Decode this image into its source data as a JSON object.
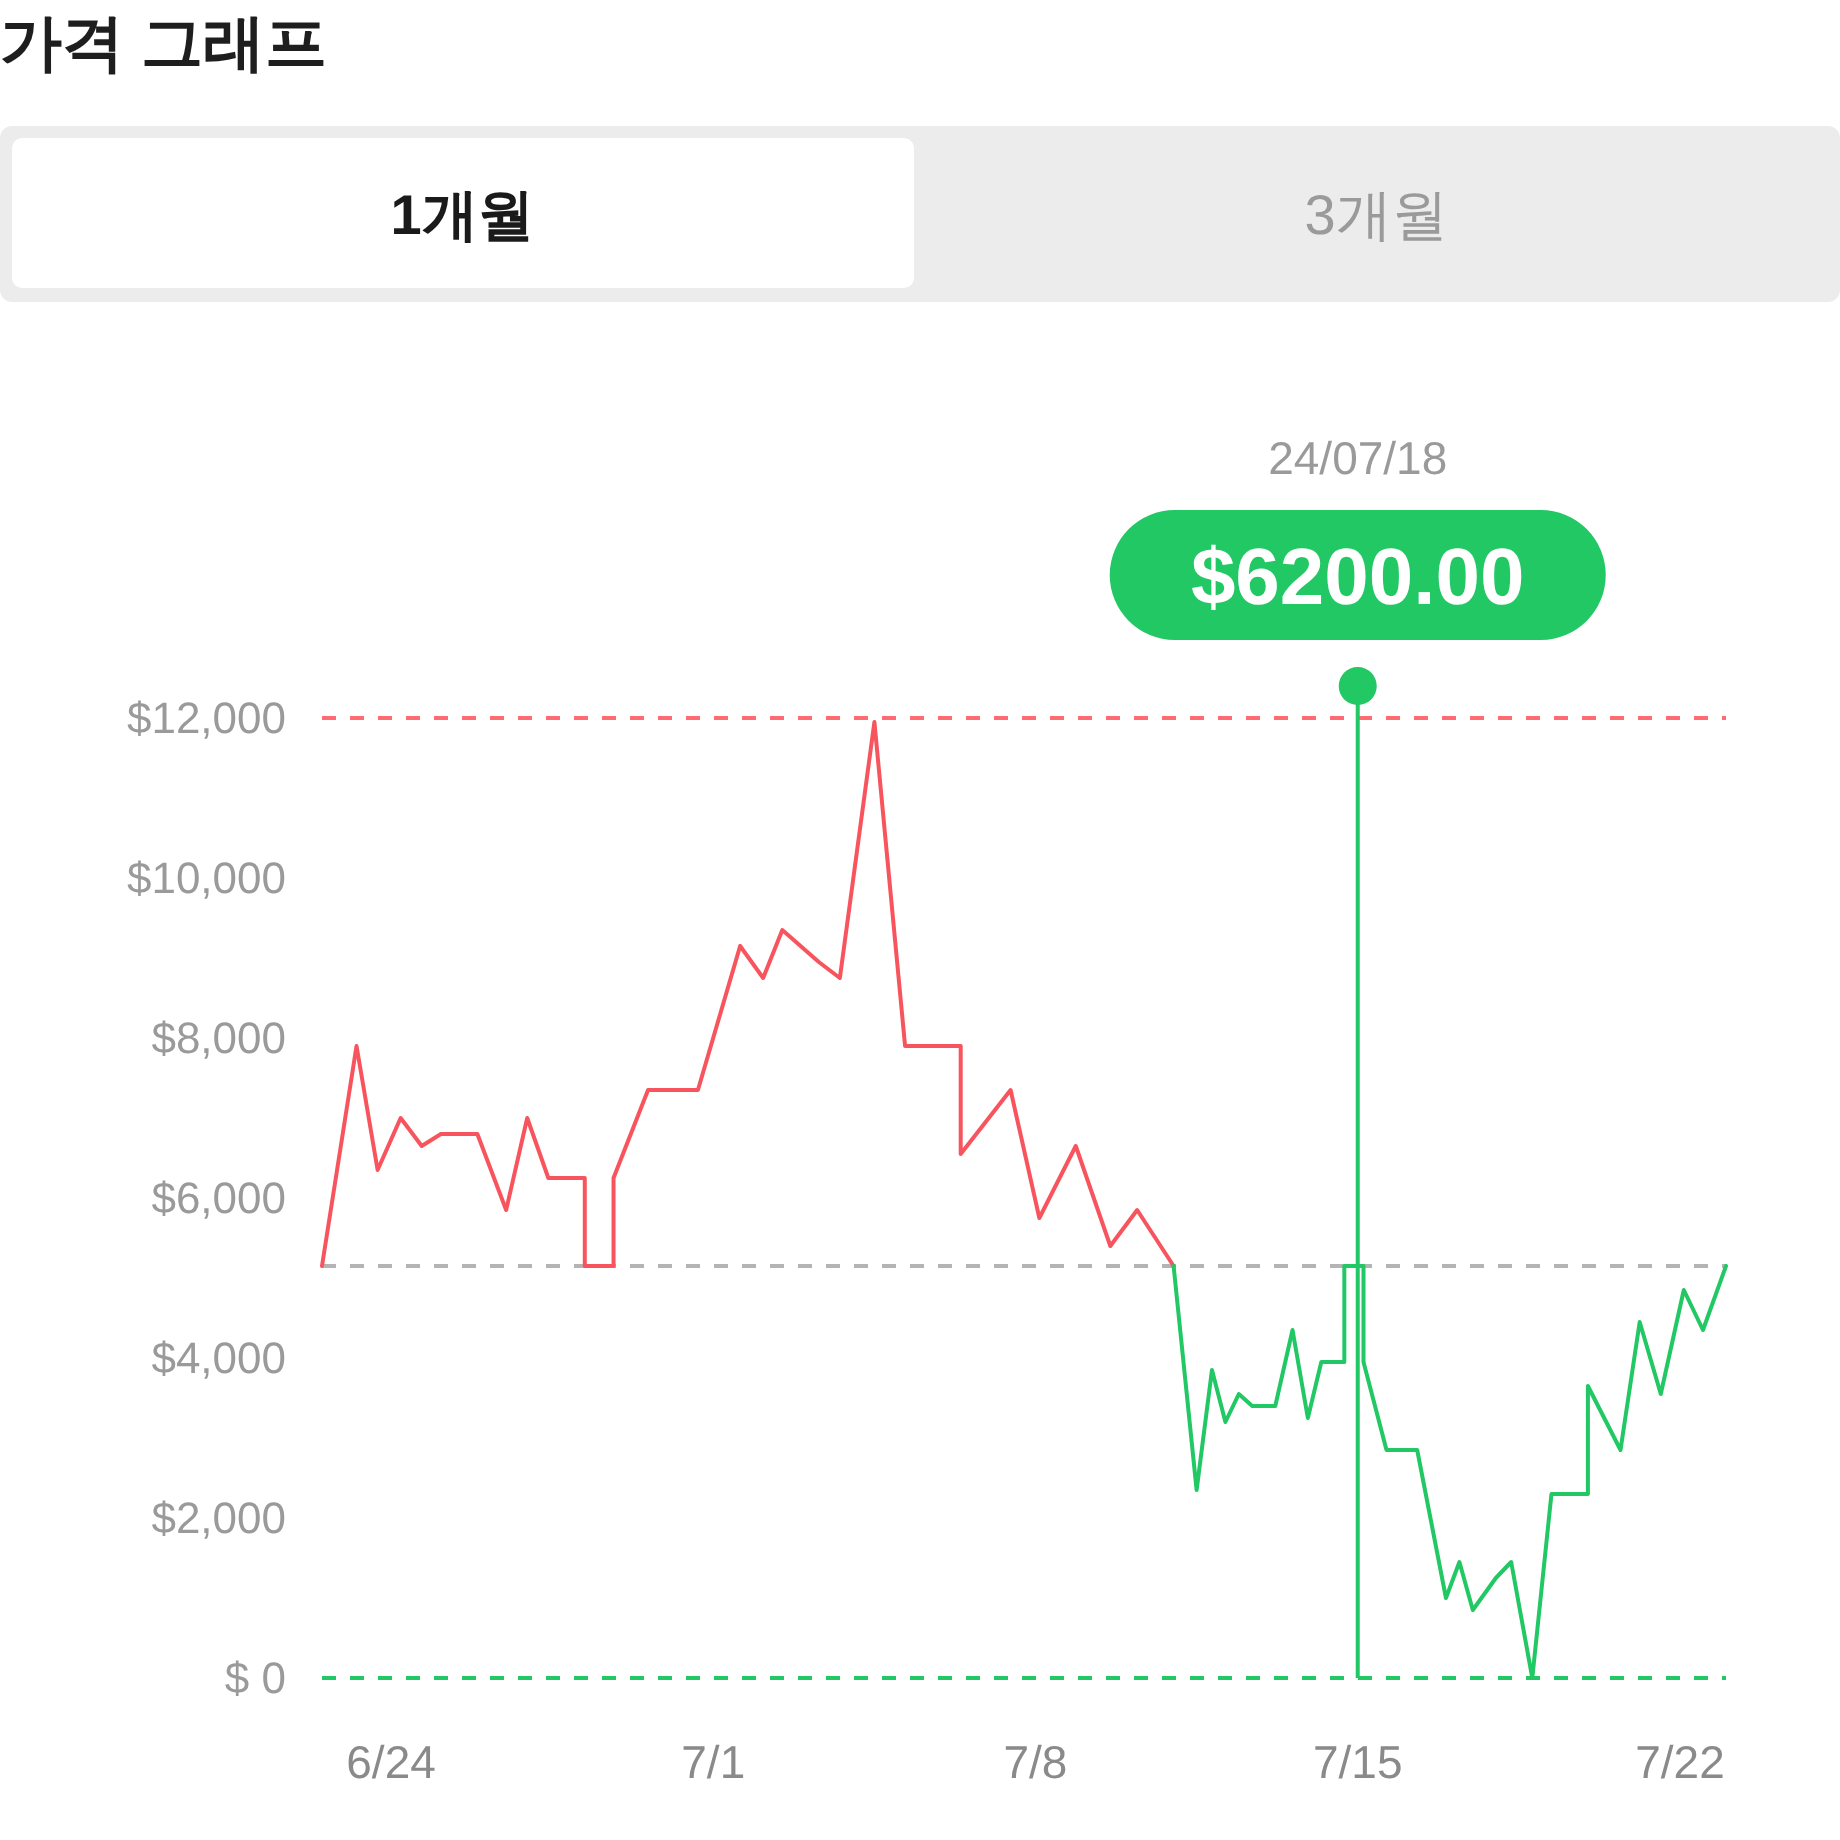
{
  "chart_data": {
    "type": "line",
    "title": "가격 그래프",
    "annotations": [
      "1개월",
      "3개월",
      "24/07/18",
      "$6200.00"
    ],
    "xlim": [
      "--06-22T12:00",
      "--07-23T00:00"
    ],
    "xticks": [
      {
        "value": "--06-24",
        "label": "6/24"
      },
      {
        "value": "--07-01",
        "label": "7/1"
      },
      {
        "value": "--07-08",
        "label": "7/8"
      },
      {
        "value": "--07-15",
        "label": "7/15"
      },
      {
        "value": "--07-22",
        "label": "7/22"
      }
    ],
    "ylim": [
      0,
      12000
    ],
    "yticks": [
      {
        "value": 0,
        "label": "$ 0"
      },
      {
        "value": 2000,
        "label": "$2,000"
      },
      {
        "value": 4000,
        "label": "$4,000"
      },
      {
        "value": 6000,
        "label": "$6,000"
      },
      {
        "value": 8000,
        "label": "$8,000"
      },
      {
        "value": 10000,
        "label": "$10,000"
      },
      {
        "value": 12000,
        "label": "$12,000"
      }
    ],
    "ref_lines": [
      {
        "axis": "y",
        "value": 12000,
        "color": "#ff6b70",
        "line_style": "dashed"
      },
      {
        "axis": "y",
        "value": 5150,
        "color": "#b4b4b4",
        "line_style": "dashed"
      },
      {
        "axis": "y",
        "value": 0,
        "color": "#21c864",
        "line_style": "dashed"
      },
      {
        "axis": "x",
        "value": "--07-15",
        "color": "#21c864",
        "line_style": "solid"
      }
    ],
    "series": [
      {
        "color": "#f8545e",
        "x": [
          "--06-22T12:00",
          "--06-23T06:00",
          "--06-23T17:00",
          "--06-24T05:00",
          "--06-24T16:00",
          "--06-25T02:00",
          "--06-25T21:00",
          "--06-26T12:00",
          "--06-26T23:00",
          "--06-27T10:00",
          "--06-28T05:00",
          "--06-28T05:00",
          "--06-28T20:00",
          "--06-28T20:00",
          "--06-29T14:00",
          "--06-30T16:00",
          "--07-01T14:00",
          "--07-02T02:00",
          "--07-02T12:00",
          "--07-03T07:00",
          "--07-03T18:00",
          "--07-04T12:00",
          "--07-05T04:00",
          "--07-06T09:00",
          "--07-06T09:00",
          "--07-07T11:00",
          "--07-08T02:00",
          "--07-08T21:00",
          "--07-09T15:00",
          "--07-10T05:00",
          "--07-11T00:00"
        ],
        "values": [
          5150,
          7900,
          6350,
          7000,
          6650,
          6800,
          6800,
          5850,
          7000,
          6250,
          6250,
          5150,
          5150,
          6250,
          7350,
          7350,
          9150,
          8750,
          9350,
          8950,
          8750,
          11950,
          7900,
          7900,
          6550,
          7350,
          5750,
          6650,
          5400,
          5850,
          5150
        ]
      },
      {
        "color": "#21c864",
        "x": [
          "--07-11T00:00",
          "--07-11T12:00",
          "--07-11T20:00",
          "--07-12T03:00",
          "--07-12T10:00",
          "--07-12T17:00",
          "--07-13T05:00",
          "--07-13T14:00",
          "--07-13T22:00",
          "--07-14T05:00",
          "--07-14T17:00",
          "--07-14T17:00",
          "--07-15T03:00",
          "--07-15T03:00",
          "--07-15T15:00",
          "--07-16T07:00",
          "--07-16T22:00",
          "--07-17T05:00",
          "--07-17T12:00",
          "--07-18T00:00",
          "--07-18T08:00",
          "--07-18T19:00",
          "--07-19T05:00",
          "--07-20T00:00",
          "--07-20T00:00",
          "--07-20T17:00",
          "--07-21T03:00",
          "--07-21T14:00",
          "--07-22T02:00",
          "--07-22T12:00",
          "--07-23T00:00"
        ],
        "values": [
          5150,
          2350,
          3850,
          3200,
          3550,
          3400,
          3400,
          4350,
          3250,
          3950,
          3950,
          5150,
          5150,
          3950,
          2850,
          2850,
          1000,
          1450,
          850,
          1250,
          1450,
          0,
          2300,
          2300,
          3650,
          2850,
          4450,
          3550,
          4850,
          4350,
          5150
        ]
      }
    ]
  }
}
